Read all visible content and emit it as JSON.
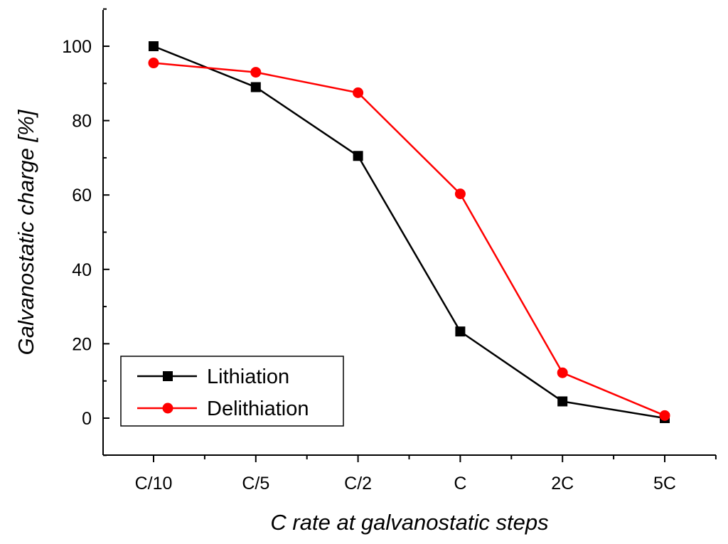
{
  "chart_data": {
    "type": "line",
    "title": "",
    "xlabel": "C rate at galvanostatic steps",
    "ylabel": "Galvanostatic charge [%]",
    "categories": [
      "C/10",
      "C/5",
      "C/2",
      "C",
      "2C",
      "5C"
    ],
    "ylim": [
      -10,
      110
    ],
    "yticks": [
      0,
      20,
      40,
      60,
      80,
      100
    ],
    "grid": false,
    "legend_position": "bottom-left",
    "series": [
      {
        "name": "Lithiation",
        "color": "#000000",
        "marker": "square",
        "values": [
          100,
          89,
          70.5,
          23.3,
          4.5,
          0
        ]
      },
      {
        "name": "Delithiation",
        "color": "#ff0000",
        "marker": "circle",
        "values": [
          95.5,
          93,
          87.5,
          60.3,
          12.2,
          0.7
        ]
      }
    ]
  }
}
